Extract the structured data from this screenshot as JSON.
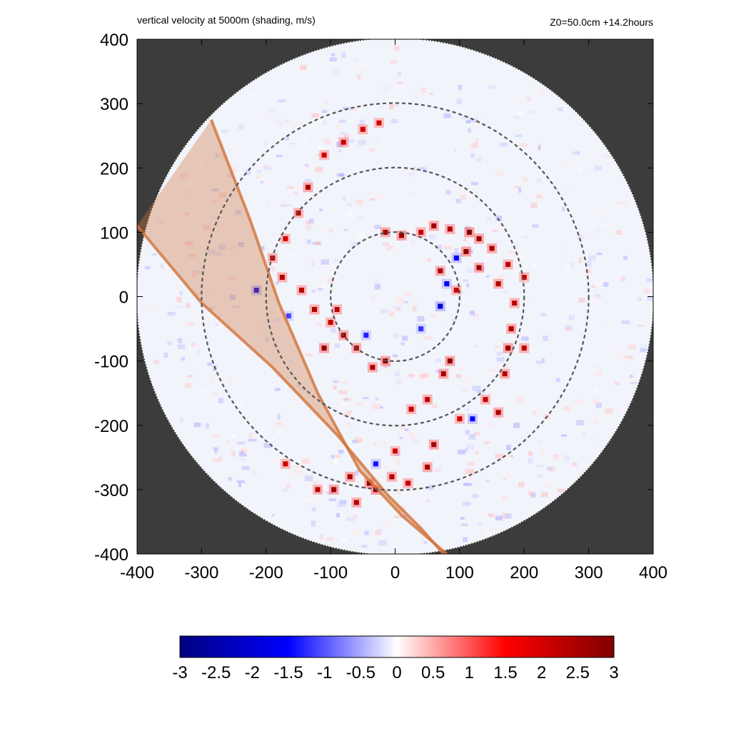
{
  "chart_data": {
    "type": "heatmap",
    "title": "vertical velocity at 5000m (shading, m/s)",
    "subtitle_right": "Z0=50.0cm  +14.2hours",
    "xlabel": "",
    "ylabel": "",
    "xlim": [
      -400,
      400
    ],
    "ylim": [
      -400,
      400
    ],
    "x_ticks": [
      -400,
      -300,
      -200,
      -100,
      0,
      100,
      200,
      300,
      400
    ],
    "y_ticks": [
      -400,
      -300,
      -200,
      -100,
      0,
      100,
      200,
      300,
      400
    ],
    "x_tick_labels": [
      "-400",
      "-300",
      "-200",
      "-100",
      "0",
      "100",
      "200",
      "300",
      "400"
    ],
    "y_tick_labels": [
      "-400",
      "-300",
      "-200",
      "-100",
      "0",
      "100",
      "200",
      "300",
      "400"
    ],
    "domain_radius": 400,
    "range_rings": [
      100,
      200,
      300
    ],
    "background_color": "#3c3c3c",
    "ring_color": "#555555",
    "swath": {
      "color": "#d2733a",
      "edge_a": [
        [
          -285,
          275
        ],
        [
          -225,
          120
        ],
        [
          -180,
          -10
        ],
        [
          -120,
          -150
        ],
        [
          -55,
          -270
        ],
        [
          10,
          -340
        ],
        [
          80,
          -400
        ]
      ],
      "edge_b": [
        [
          -400,
          110
        ],
        [
          -300,
          -10
        ],
        [
          -190,
          -110
        ],
        [
          -90,
          -215
        ],
        [
          -10,
          -310
        ],
        [
          40,
          -360
        ],
        [
          75,
          -400
        ]
      ]
    },
    "colorbar": {
      "min": -3,
      "max": 3,
      "ticks": [
        "-3",
        "-2.5",
        "-2",
        "-1.5",
        "-1",
        "-0.5",
        "0",
        "0.5",
        "1",
        "1.5",
        "2",
        "2.5",
        "3"
      ],
      "colors": [
        "#00007f",
        "#0000ff",
        "#ffffff",
        "#ff0000",
        "#7f0000"
      ]
    },
    "updraft_cells": [
      [
        -15,
        100,
        2.5
      ],
      [
        10,
        95,
        2.8
      ],
      [
        40,
        100,
        2.2
      ],
      [
        60,
        110,
        2.6
      ],
      [
        85,
        105,
        2.4
      ],
      [
        115,
        100,
        3.0
      ],
      [
        130,
        90,
        2.7
      ],
      [
        150,
        75,
        2.5
      ],
      [
        175,
        50,
        2.2
      ],
      [
        200,
        30,
        2.0
      ],
      [
        110,
        70,
        2.8
      ],
      [
        130,
        45,
        2.6
      ],
      [
        160,
        20,
        2.4
      ],
      [
        185,
        -10,
        2.3
      ],
      [
        180,
        -50,
        2.5
      ],
      [
        175,
        -80,
        2.7
      ],
      [
        170,
        -120,
        2.4
      ],
      [
        140,
        -160,
        2.2
      ],
      [
        100,
        -190,
        2.0
      ],
      [
        85,
        -100,
        2.9
      ],
      [
        75,
        -120,
        2.6
      ],
      [
        50,
        -160,
        2.3
      ],
      [
        25,
        -175,
        2.2
      ],
      [
        -15,
        -100,
        2.8
      ],
      [
        -35,
        -110,
        2.5
      ],
      [
        -60,
        -80,
        2.4
      ],
      [
        -80,
        -60,
        2.6
      ],
      [
        -100,
        -40,
        2.2
      ],
      [
        -125,
        -20,
        2.5
      ],
      [
        -145,
        10,
        2.3
      ],
      [
        -175,
        30,
        2.4
      ],
      [
        -190,
        60,
        2.2
      ],
      [
        -170,
        90,
        2.0
      ],
      [
        -150,
        130,
        2.3
      ],
      [
        -135,
        170,
        2.5
      ],
      [
        -110,
        220,
        2.0
      ],
      [
        -80,
        240,
        2.2
      ],
      [
        -50,
        260,
        2.1
      ],
      [
        -25,
        270,
        2.0
      ],
      [
        -95,
        -300,
        2.7
      ],
      [
        -70,
        -280,
        2.5
      ],
      [
        -40,
        -290,
        2.8
      ],
      [
        -30,
        -300,
        2.9
      ],
      [
        -5,
        -280,
        2.4
      ],
      [
        20,
        -290,
        2.2
      ],
      [
        50,
        -265,
        2.5
      ],
      [
        -120,
        -300,
        2.3
      ],
      [
        -170,
        -260,
        2.1
      ],
      [
        -60,
        -320,
        2.4
      ],
      [
        60,
        -230,
        2.6
      ],
      [
        0,
        -240,
        2.0
      ],
      [
        -110,
        -80,
        2.7
      ],
      [
        -90,
        -20,
        2.3
      ],
      [
        160,
        -180,
        2.5
      ],
      [
        200,
        -80,
        2.2
      ],
      [
        70,
        40,
        2.4
      ],
      [
        95,
        10,
        2.1
      ]
    ],
    "downdraft_cells": [
      [
        -215,
        10,
        -1.8
      ],
      [
        70,
        -15,
        -2.0
      ],
      [
        80,
        20,
        -1.5
      ],
      [
        -45,
        -60,
        -1.3
      ],
      [
        120,
        -190,
        -1.6
      ],
      [
        -30,
        -260,
        -1.4
      ],
      [
        95,
        60,
        -1.7
      ],
      [
        40,
        -50,
        -1.2
      ],
      [
        -165,
        -30,
        -1.1
      ]
    ]
  }
}
